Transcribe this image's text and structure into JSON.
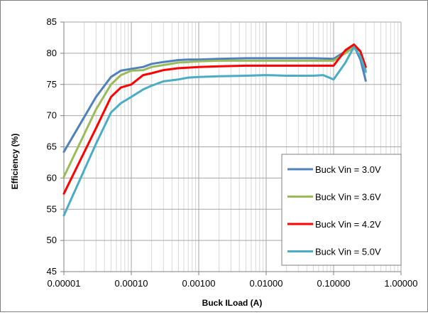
{
  "chart_data": {
    "type": "line",
    "title": "",
    "xlabel": "Buck ILoad (A)",
    "ylabel": "Efficiency (%)",
    "x_scale": "log",
    "xlim": [
      1e-05,
      1
    ],
    "ylim": [
      45,
      85
    ],
    "x_tick_labels": [
      "0.00001",
      "0.00010",
      "0.00100",
      "0.01000",
      "0.10000",
      "1.00000"
    ],
    "x_tick_values": [
      1e-05,
      0.0001,
      0.001,
      0.01,
      0.1,
      1
    ],
    "y_ticks": [
      45,
      50,
      55,
      60,
      65,
      70,
      75,
      80,
      85
    ],
    "grid": true,
    "legend_position": "bottom-right",
    "series": [
      {
        "name": "Buck Vin = 3.0V",
        "color": "#4f81bd",
        "x": [
          1e-05,
          3e-05,
          5e-05,
          7e-05,
          0.0001,
          0.00015,
          0.0002,
          0.0003,
          0.0005,
          0.0007,
          0.001,
          0.002,
          0.005,
          0.01,
          0.02,
          0.05,
          0.1,
          0.15,
          0.2,
          0.25,
          0.3
        ],
        "y": [
          64.2,
          73.0,
          76.2,
          77.2,
          77.5,
          77.8,
          78.3,
          78.6,
          78.9,
          79.0,
          79.0,
          79.1,
          79.2,
          79.2,
          79.2,
          79.2,
          79.1,
          80.3,
          81.2,
          79.0,
          75.6
        ]
      },
      {
        "name": "Buck Vin = 3.6V",
        "color": "#9bbb59",
        "x": [
          1e-05,
          3e-05,
          5e-05,
          7e-05,
          0.0001,
          0.00015,
          0.0002,
          0.0003,
          0.0005,
          0.0007,
          0.001,
          0.002,
          0.005,
          0.01,
          0.02,
          0.05,
          0.1,
          0.15,
          0.2,
          0.25,
          0.3
        ],
        "y": [
          60.2,
          71.0,
          75.0,
          76.5,
          77.2,
          77.3,
          77.8,
          78.1,
          78.5,
          78.6,
          78.7,
          78.8,
          78.8,
          78.8,
          78.8,
          78.8,
          78.8,
          80.0,
          81.0,
          80.3,
          77.2
        ]
      },
      {
        "name": "Buck Vin = 4.2V",
        "color": "#ff0000",
        "x": [
          1e-05,
          3e-05,
          5e-05,
          7e-05,
          0.0001,
          0.00015,
          0.0002,
          0.0003,
          0.0005,
          0.0007,
          0.001,
          0.002,
          0.005,
          0.01,
          0.02,
          0.05,
          0.1,
          0.15,
          0.2,
          0.25,
          0.3
        ],
        "y": [
          57.5,
          68.0,
          73.0,
          74.5,
          75.0,
          76.5,
          76.8,
          77.3,
          77.6,
          77.7,
          77.8,
          77.9,
          78.0,
          78.0,
          78.0,
          78.0,
          78.0,
          80.5,
          81.4,
          80.3,
          77.8
        ]
      },
      {
        "name": "Buck Vin = 5.0V",
        "color": "#4bacc6",
        "x": [
          1e-05,
          3e-05,
          5e-05,
          7e-05,
          0.0001,
          0.00015,
          0.0002,
          0.0003,
          0.0005,
          0.0007,
          0.001,
          0.002,
          0.005,
          0.01,
          0.02,
          0.05,
          0.07,
          0.1,
          0.15,
          0.2,
          0.25,
          0.3
        ],
        "y": [
          54.0,
          65.5,
          70.5,
          72.0,
          73.0,
          74.2,
          74.8,
          75.5,
          75.8,
          76.1,
          76.2,
          76.3,
          76.4,
          76.5,
          76.4,
          76.4,
          76.5,
          75.8,
          78.5,
          81.0,
          79.5,
          77.0
        ]
      }
    ]
  }
}
